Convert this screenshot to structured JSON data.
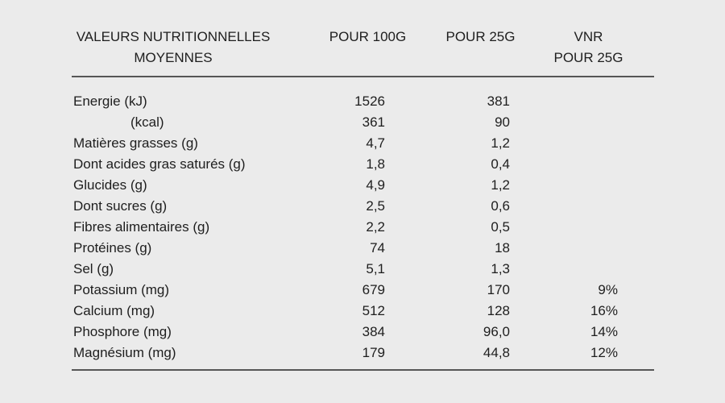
{
  "page": {
    "background_color": "#ebebeb",
    "text_color": "#1e1e1e",
    "rule_color": "#565656"
  },
  "table": {
    "header": {
      "col1_line1": "VALEURS NUTRITIONNELLES",
      "col1_line2": "MOYENNES",
      "col2": "POUR 100G",
      "col3": "POUR 25G",
      "col4_line1": "VNR",
      "col4_line2": "POUR 25G"
    },
    "rows": [
      {
        "label": "Energie (kJ)",
        "per100g": "1526",
        "per25g": "381",
        "vnr": "",
        "indent": false
      },
      {
        "label": "(kcal)",
        "per100g": "361",
        "per25g": "90",
        "vnr": "",
        "indent": true
      },
      {
        "label": "Matières grasses (g)",
        "per100g": "4,7",
        "per25g": "1,2",
        "vnr": "",
        "indent": false
      },
      {
        "label": "Dont acides gras saturés (g)",
        "per100g": "1,8",
        "per25g": "0,4",
        "vnr": "",
        "indent": false
      },
      {
        "label": "Glucides (g)",
        "per100g": "4,9",
        "per25g": "1,2",
        "vnr": "",
        "indent": false
      },
      {
        "label": "Dont sucres (g)",
        "per100g": "2,5",
        "per25g": "0,6",
        "vnr": "",
        "indent": false
      },
      {
        "label": "Fibres alimentaires (g)",
        "per100g": "2,2",
        "per25g": "0,5",
        "vnr": "",
        "indent": false
      },
      {
        "label": "Protéines (g)",
        "per100g": "74",
        "per25g": "18",
        "vnr": "",
        "indent": false
      },
      {
        "label": "Sel (g)",
        "per100g": "5,1",
        "per25g": "1,3",
        "vnr": "",
        "indent": false
      },
      {
        "label": "Potassium (mg)",
        "per100g": "679",
        "per25g": "170",
        "vnr": "9%",
        "indent": false
      },
      {
        "label": "Calcium (mg)",
        "per100g": "512",
        "per25g": "128",
        "vnr": "16%",
        "indent": false
      },
      {
        "label": "Phosphore (mg)",
        "per100g": "384",
        "per25g": "96,0",
        "vnr": "14%",
        "indent": false
      },
      {
        "label": "Magnésium (mg)",
        "per100g": "179",
        "per25g": "44,8",
        "vnr": "12%",
        "indent": false
      }
    ]
  },
  "chart_data": {
    "type": "table",
    "title": "VALEURS NUTRITIONNELLES MOYENNES",
    "columns": [
      "VALEURS NUTRITIONNELLES MOYENNES",
      "POUR 100G",
      "POUR 25G",
      "VNR POUR 25G"
    ],
    "rows": [
      [
        "Energie (kJ)",
        "1526",
        "381",
        ""
      ],
      [
        "(kcal)",
        "361",
        "90",
        ""
      ],
      [
        "Matières grasses (g)",
        "4,7",
        "1,2",
        ""
      ],
      [
        "Dont acides gras saturés (g)",
        "1,8",
        "0,4",
        ""
      ],
      [
        "Glucides (g)",
        "4,9",
        "1,2",
        ""
      ],
      [
        "Dont sucres (g)",
        "2,5",
        "0,6",
        ""
      ],
      [
        "Fibres alimentaires (g)",
        "2,2",
        "0,5",
        ""
      ],
      [
        "Protéines (g)",
        "74",
        "18",
        ""
      ],
      [
        "Sel (g)",
        "5,1",
        "1,3",
        ""
      ],
      [
        "Potassium (mg)",
        "679",
        "170",
        "9%"
      ],
      [
        "Calcium (mg)",
        "512",
        "128",
        "16%"
      ],
      [
        "Phosphore (mg)",
        "384",
        "96,0",
        "14%"
      ],
      [
        "Magnésium (mg)",
        "179",
        "44,8",
        "12%"
      ]
    ]
  }
}
